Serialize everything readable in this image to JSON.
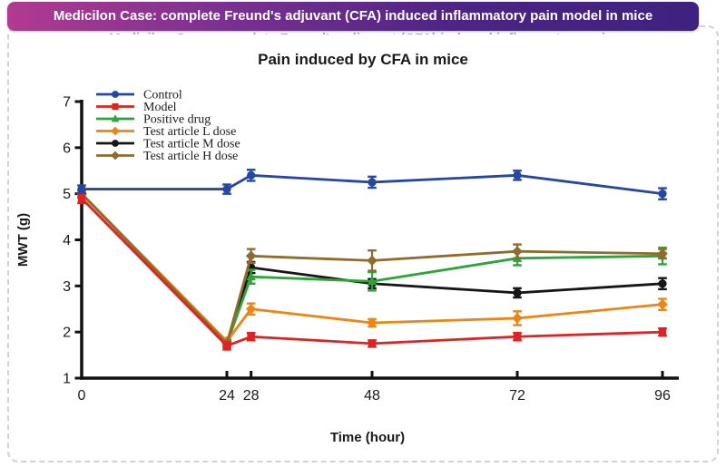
{
  "banner": {
    "text": "Medicilon Case: complete Freund's adjuvant (CFA) induced inflammatory pain model in mice",
    "gradient_left": "#b23a90",
    "gradient_right": "#3e2180"
  },
  "chart_data": {
    "type": "line",
    "title": "Pain induced by CFA in mice",
    "xlabel": "Time (hour)",
    "ylabel": "MWT (g)",
    "x": [
      0,
      24,
      28,
      48,
      72,
      96
    ],
    "x_tick_labels": [
      "0",
      "24",
      "28",
      "48",
      "72",
      "96"
    ],
    "ylim": [
      1,
      7
    ],
    "y_ticks": [
      1,
      2,
      3,
      4,
      5,
      6,
      7
    ],
    "grid": false,
    "legend_position": "top-left-inside",
    "axis_color": "#111111",
    "series": [
      {
        "name": "Control",
        "color": "#2547a3",
        "marker": "circle",
        "values": [
          5.1,
          5.1,
          5.4,
          5.25,
          5.4,
          5.0
        ],
        "errors": [
          0.08,
          0.1,
          0.12,
          0.12,
          0.1,
          0.12
        ]
      },
      {
        "name": "Model",
        "color": "#e32022",
        "marker": "square",
        "values": [
          4.9,
          1.7,
          1.9,
          1.75,
          1.9,
          2.0
        ],
        "errors": [
          0.1,
          0.08,
          0.08,
          0.07,
          0.08,
          0.08
        ]
      },
      {
        "name": "Positive drug",
        "color": "#2da43a",
        "marker": "triangle",
        "values": [
          5.0,
          1.75,
          3.2,
          3.1,
          3.6,
          3.65
        ],
        "errors": [
          0.08,
          0.07,
          0.15,
          0.2,
          0.15,
          0.18
        ]
      },
      {
        "name": "Test article L dose",
        "color": "#ee8512",
        "marker": "diamond",
        "values": [
          5.0,
          1.8,
          2.5,
          2.2,
          2.3,
          2.6
        ],
        "errors": [
          0.08,
          0.07,
          0.12,
          0.08,
          0.15,
          0.12
        ]
      },
      {
        "name": "Test article M dose",
        "color": "#161616",
        "marker": "circle",
        "values": [
          5.0,
          1.75,
          3.4,
          3.05,
          2.85,
          3.05
        ],
        "errors": [
          0.08,
          0.07,
          0.12,
          0.1,
          0.1,
          0.12
        ]
      },
      {
        "name": "Test article H dose",
        "color": "#8f6c2b",
        "marker": "diamond",
        "values": [
          5.0,
          1.75,
          3.65,
          3.55,
          3.75,
          3.7
        ],
        "errors": [
          0.08,
          0.07,
          0.15,
          0.22,
          0.15,
          0.1
        ]
      }
    ]
  }
}
